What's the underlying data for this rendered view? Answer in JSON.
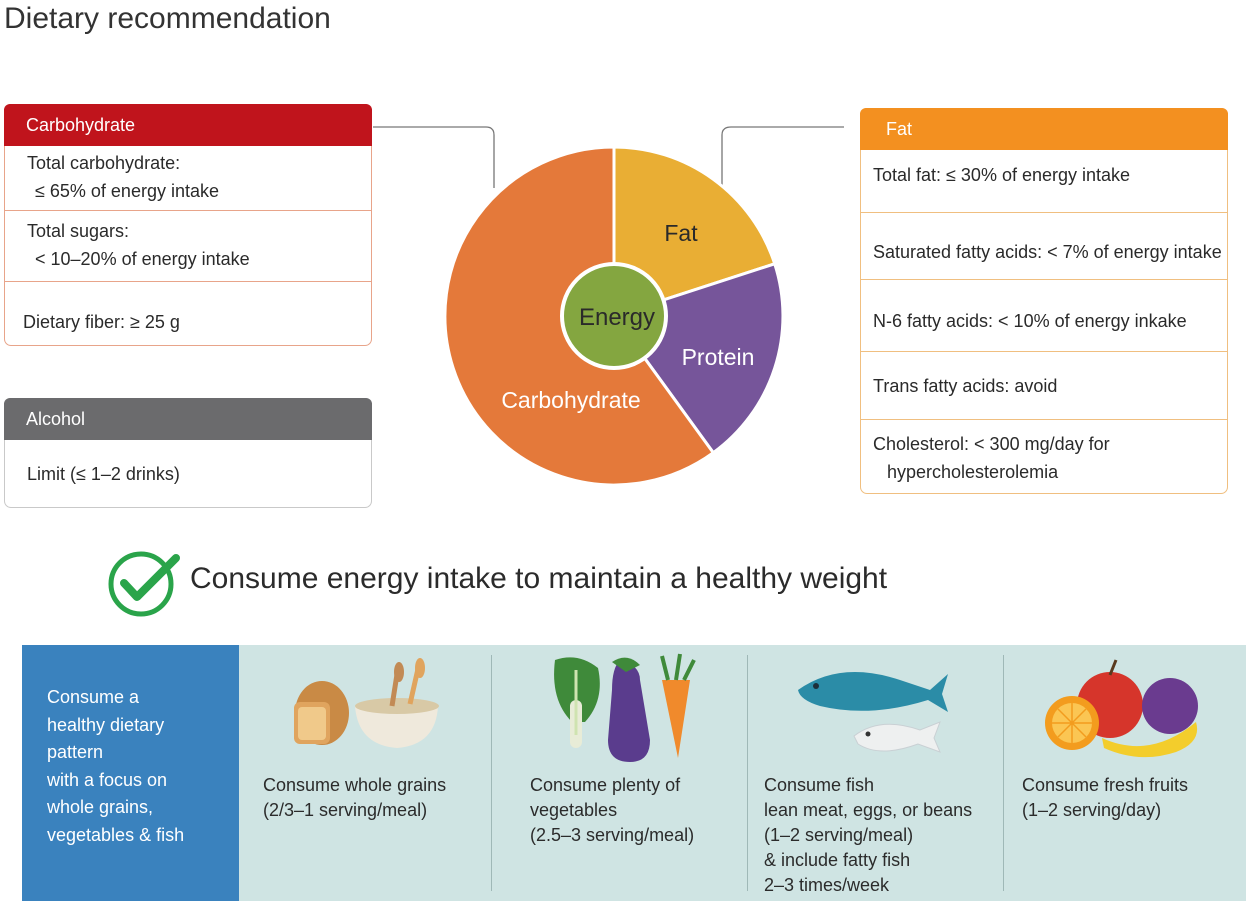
{
  "title": "Dietary recommendation",
  "carbohydrate": {
    "header": "Carbohydrate",
    "color": "#c0141c",
    "items": [
      {
        "line1": "Total carbohydrate:",
        "line2": "≤ 65% of energy intake"
      },
      {
        "line1": "Total sugars:",
        "line2": "< 10–20% of energy intake"
      },
      {
        "line1": "Dietary fiber: ≥ 25 g",
        "line2": ""
      }
    ]
  },
  "alcohol": {
    "header": "Alcohol",
    "color": "#6b6b6d",
    "item": "Limit (≤ 1–2 drinks)"
  },
  "fat": {
    "header": "Fat",
    "color": "#f39020",
    "items": [
      "Total fat: ≤ 30% of energy intake",
      "Saturated fatty acids: < 7% of energy intake",
      "N-6 fatty acids: < 10% of energy inkake",
      "Trans fatty acids: avoid"
    ],
    "last_line1": "Cholesterol: < 300 mg/day for",
    "last_line2": "hypercholesterolemia"
  },
  "pie": {
    "center_label": "Energy",
    "slices": [
      {
        "label": "Fat",
        "color": "#e9ae34"
      },
      {
        "label": "Protein",
        "color": "#76559a"
      },
      {
        "label": "Carbohydrate",
        "color": "#e4793a"
      }
    ],
    "center_color": "#84a640"
  },
  "slogan": "Consume energy intake to maintain a healthy weight",
  "check_color": "#2aa44a",
  "panel": {
    "intro": [
      "Consume a",
      "healthy dietary",
      "pattern",
      "with a focus on",
      "whole grains,",
      "vegetables & fish"
    ],
    "foods": [
      {
        "text": "Consume whole grains\n(2/3–1 serving/meal)",
        "icon": "grains-icon"
      },
      {
        "text": "Consume plenty of\nvegetables\n(2.5–3 serving/meal)",
        "icon": "vegetables-icon"
      },
      {
        "text": "Consume fish\nlean meat, eggs, or beans\n(1–2 serving/meal)\n& include fatty fish\n2–3 times/week",
        "icon": "fish-icon"
      },
      {
        "text": "Consume fresh fruits\n(1–2 serving/day)",
        "icon": "fruits-icon"
      }
    ]
  }
}
